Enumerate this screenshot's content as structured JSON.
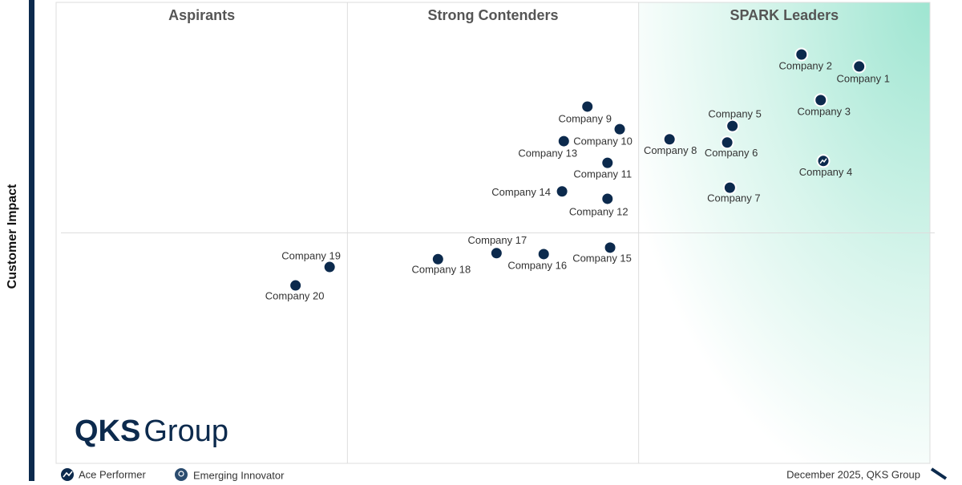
{
  "chart_data": {
    "type": "scatter",
    "quadrants": [
      "Aspirants",
      "Strong Contenders",
      "SPARK Leaders"
    ],
    "ylabel": "Customer Impact",
    "xlim": [
      0,
      100
    ],
    "ylim": [
      0,
      100
    ],
    "marker_color": "#0c2a4d",
    "points": [
      {
        "label": "Company 1",
        "x": 91.9,
        "y": 86.1
      },
      {
        "label": "Company 2",
        "x": 85.3,
        "y": 88.7
      },
      {
        "label": "Company 3",
        "x": 87.5,
        "y": 78.8
      },
      {
        "label": "Company 4",
        "x": 87.8,
        "y": 65.6,
        "badge": "ace"
      },
      {
        "label": "Company 5",
        "x": 77.4,
        "y": 73.2
      },
      {
        "label": "Company 6",
        "x": 76.8,
        "y": 69.6
      },
      {
        "label": "Company 7",
        "x": 77.1,
        "y": 59.8
      },
      {
        "label": "Company 8",
        "x": 70.2,
        "y": 70.3
      },
      {
        "label": "Company 9",
        "x": 60.8,
        "y": 77.4
      },
      {
        "label": "Company 10",
        "x": 64.5,
        "y": 72.5
      },
      {
        "label": "Company 11",
        "x": 63.1,
        "y": 65.2
      },
      {
        "label": "Company 12",
        "x": 63.1,
        "y": 57.4
      },
      {
        "label": "Company 13",
        "x": 58.1,
        "y": 69.9
      },
      {
        "label": "Company 14",
        "x": 57.9,
        "y": 59.0
      },
      {
        "label": "Company 15",
        "x": 63.4,
        "y": 46.8
      },
      {
        "label": "Company 16",
        "x": 55.8,
        "y": 45.4
      },
      {
        "label": "Company 17",
        "x": 50.4,
        "y": 45.6
      },
      {
        "label": "Company 18",
        "x": 43.7,
        "y": 44.3
      },
      {
        "label": "Company 19",
        "x": 31.3,
        "y": 42.6
      },
      {
        "label": "Company 20",
        "x": 27.4,
        "y": 38.6
      }
    ],
    "legend": [
      "Ace Performer",
      "Emerging Innovator"
    ],
    "footer": "December 2025, QKS Group",
    "logo": {
      "bold": "QKS",
      "light": "Group"
    }
  }
}
